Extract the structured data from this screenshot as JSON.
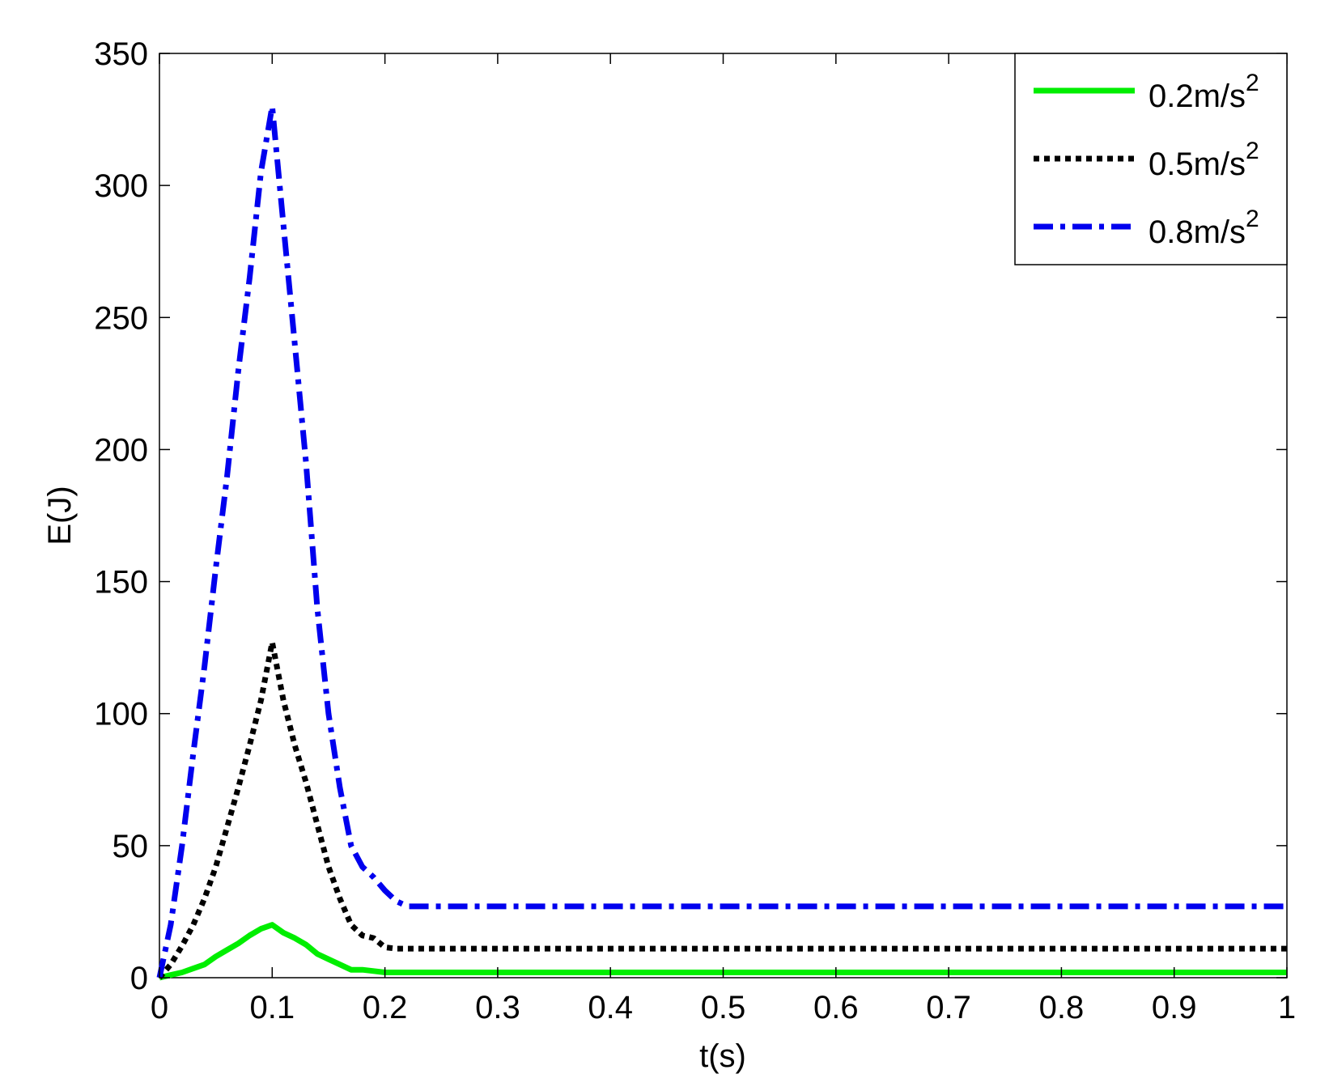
{
  "chart_data": {
    "type": "line",
    "title": "",
    "xlabel": "t(s)",
    "ylabel": "E(J)",
    "xlim": [
      0,
      1
    ],
    "ylim": [
      0,
      350
    ],
    "xticks": [
      "0",
      "0.1",
      "0.2",
      "0.3",
      "0.4",
      "0.5",
      "0.6",
      "0.7",
      "0.8",
      "0.9",
      "1"
    ],
    "yticks": [
      "0",
      "50",
      "100",
      "150",
      "200",
      "250",
      "300",
      "350"
    ],
    "grid": false,
    "legend_position": "top-right",
    "series": [
      {
        "name": "0.2m/s",
        "superscript": "2",
        "color": "#00ee00",
        "style": "solid",
        "points": [
          [
            0,
            0
          ],
          [
            0.01,
            1
          ],
          [
            0.02,
            2
          ],
          [
            0.03,
            3.5
          ],
          [
            0.04,
            5
          ],
          [
            0.05,
            8
          ],
          [
            0.06,
            10.5
          ],
          [
            0.07,
            13
          ],
          [
            0.08,
            16
          ],
          [
            0.09,
            18.5
          ],
          [
            0.1,
            20
          ],
          [
            0.11,
            17
          ],
          [
            0.12,
            15
          ],
          [
            0.13,
            12.5
          ],
          [
            0.14,
            9
          ],
          [
            0.15,
            7
          ],
          [
            0.16,
            5
          ],
          [
            0.17,
            3
          ],
          [
            0.18,
            3
          ],
          [
            0.19,
            2.5
          ],
          [
            0.2,
            2
          ],
          [
            0.25,
            2
          ],
          [
            0.3,
            2
          ],
          [
            0.4,
            2
          ],
          [
            0.5,
            2
          ],
          [
            0.6,
            2
          ],
          [
            0.7,
            2
          ],
          [
            0.8,
            2
          ],
          [
            0.9,
            2
          ],
          [
            1,
            2
          ]
        ]
      },
      {
        "name": "0.5m/s",
        "superscript": "2",
        "color": "#000000",
        "style": "dotted",
        "points": [
          [
            0,
            0
          ],
          [
            0.01,
            5
          ],
          [
            0.02,
            12
          ],
          [
            0.03,
            20
          ],
          [
            0.04,
            30
          ],
          [
            0.05,
            42
          ],
          [
            0.06,
            57
          ],
          [
            0.07,
            72
          ],
          [
            0.08,
            88
          ],
          [
            0.09,
            105
          ],
          [
            0.1,
            127
          ],
          [
            0.11,
            105
          ],
          [
            0.12,
            88
          ],
          [
            0.13,
            74
          ],
          [
            0.14,
            58
          ],
          [
            0.15,
            42
          ],
          [
            0.16,
            30
          ],
          [
            0.17,
            20
          ],
          [
            0.18,
            16
          ],
          [
            0.19,
            15
          ],
          [
            0.2,
            11.5
          ],
          [
            0.21,
            11
          ],
          [
            0.22,
            11
          ],
          [
            0.3,
            11
          ],
          [
            0.4,
            11
          ],
          [
            0.5,
            11
          ],
          [
            0.6,
            11
          ],
          [
            0.7,
            11
          ],
          [
            0.8,
            11
          ],
          [
            0.9,
            11
          ],
          [
            1,
            11
          ]
        ]
      },
      {
        "name": "0.8m/s",
        "superscript": "2",
        "color": "#0000ee",
        "style": "dashdot",
        "points": [
          [
            0,
            0
          ],
          [
            0.01,
            20
          ],
          [
            0.02,
            50
          ],
          [
            0.03,
            85
          ],
          [
            0.04,
            118
          ],
          [
            0.05,
            155
          ],
          [
            0.06,
            190
          ],
          [
            0.07,
            230
          ],
          [
            0.08,
            265
          ],
          [
            0.09,
            305
          ],
          [
            0.1,
            330
          ],
          [
            0.11,
            285
          ],
          [
            0.12,
            240
          ],
          [
            0.13,
            195
          ],
          [
            0.14,
            140
          ],
          [
            0.15,
            100
          ],
          [
            0.16,
            72
          ],
          [
            0.17,
            50
          ],
          [
            0.18,
            42
          ],
          [
            0.19,
            38
          ],
          [
            0.2,
            33
          ],
          [
            0.21,
            29
          ],
          [
            0.22,
            27
          ],
          [
            0.3,
            27
          ],
          [
            0.4,
            27
          ],
          [
            0.5,
            27
          ],
          [
            0.6,
            27
          ],
          [
            0.7,
            27
          ],
          [
            0.8,
            27
          ],
          [
            0.9,
            27
          ],
          [
            1,
            27
          ]
        ]
      }
    ]
  }
}
